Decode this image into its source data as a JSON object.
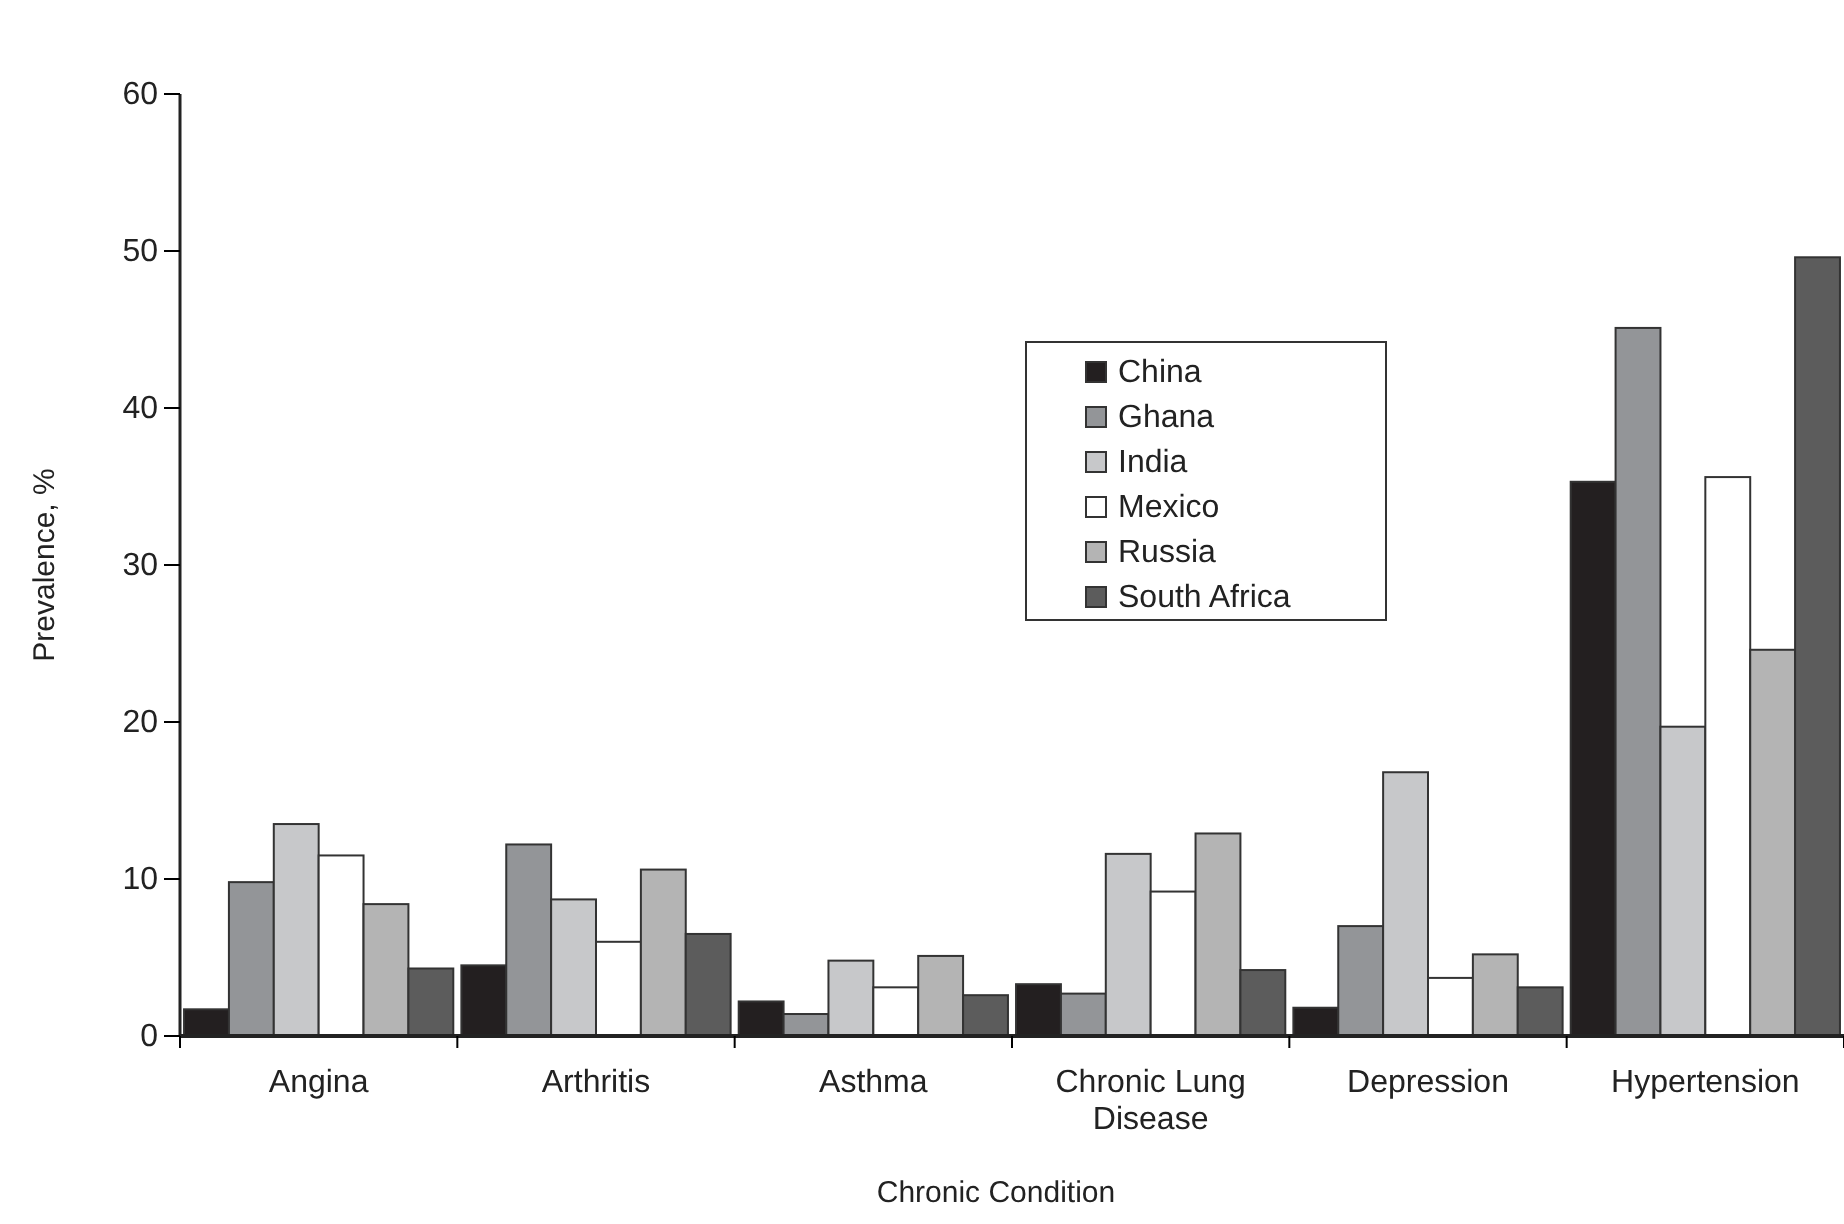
{
  "chart_data": {
    "type": "bar",
    "xlabel": "Chronic Condition",
    "ylabel": "Prevalence, %",
    "categories": [
      "Angina",
      "Arthritis",
      "Asthma",
      "Chronic Lung Disease",
      "Depression",
      "Hypertension"
    ],
    "series": [
      {
        "name": "China",
        "color": "#231f20",
        "values": [
          1.7,
          4.5,
          2.2,
          3.3,
          1.8,
          35.3
        ]
      },
      {
        "name": "Ghana",
        "color": "#939598",
        "values": [
          9.8,
          12.2,
          1.4,
          2.7,
          7.0,
          45.1
        ]
      },
      {
        "name": "India",
        "color": "#c7c8ca",
        "values": [
          13.5,
          8.7,
          4.8,
          11.6,
          16.8,
          19.7
        ]
      },
      {
        "name": "Mexico",
        "color": "#ffffff",
        "values": [
          11.5,
          6.0,
          3.1,
          9.2,
          3.7,
          35.6
        ]
      },
      {
        "name": "Russia",
        "color": "#b4b4b4",
        "values": [
          8.4,
          10.6,
          5.1,
          12.9,
          5.2,
          24.6
        ]
      },
      {
        "name": "South Africa",
        "color": "#5c5c5c",
        "values": [
          4.3,
          6.5,
          2.6,
          4.2,
          3.1,
          49.6
        ]
      }
    ],
    "ylim": [
      0,
      60
    ],
    "yticks": [
      0,
      10,
      20,
      30,
      40,
      50,
      60
    ],
    "grid": false,
    "legend": "center"
  }
}
